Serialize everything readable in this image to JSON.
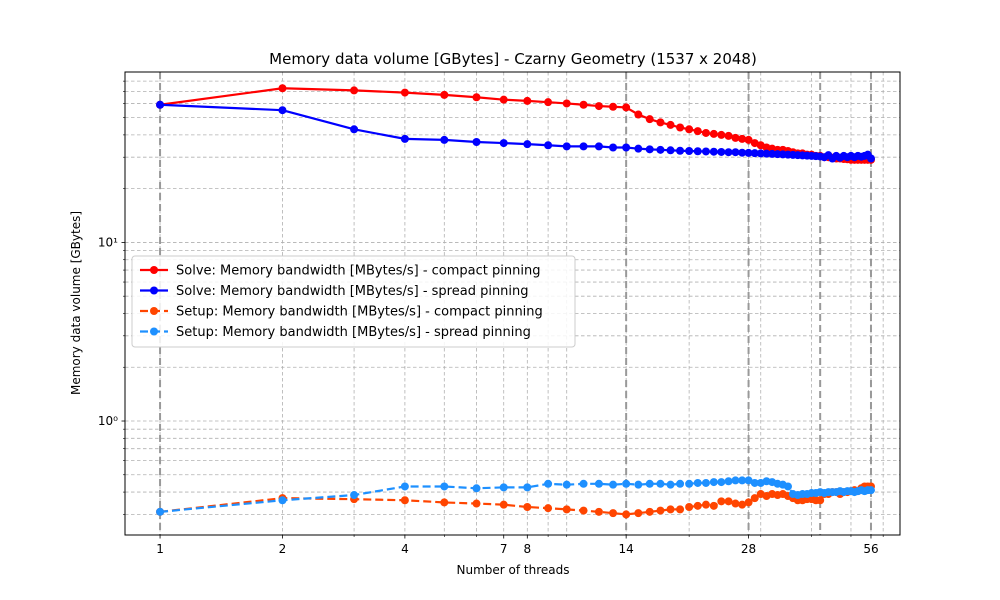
{
  "chart_data": {
    "type": "line",
    "title": "Memory data volume [GBytes] - Czarny Geometry (1537 x 2048)",
    "xlabel": "Number of threads",
    "ylabel": "Memory data volume [GBytes]",
    "xscale": "log",
    "yscale": "log",
    "xlim": [
      0.82,
      66
    ],
    "ylim": [
      0.23,
      90
    ],
    "x_ticks": [
      1,
      2,
      4,
      7,
      8,
      14,
      28,
      56
    ],
    "y_ticks": [
      {
        "value": 1,
        "label": "10⁰"
      },
      {
        "value": 10,
        "label": "10¹"
      }
    ],
    "x_highlight_lines": [
      1,
      14,
      28,
      42,
      56
    ],
    "grid": true,
    "legend_position": "center-left",
    "series": [
      {
        "name": "Solve: Memory bandwidth [MBytes/s] - compact pinning",
        "color": "#ff0000",
        "linestyle": "solid",
        "points": [
          [
            1,
            59
          ],
          [
            2,
            73
          ],
          [
            3,
            71
          ],
          [
            4,
            69
          ],
          [
            5,
            67
          ],
          [
            6,
            65
          ],
          [
            7,
            63
          ],
          [
            8,
            62
          ],
          [
            9,
            61
          ],
          [
            10,
            60
          ],
          [
            11,
            59
          ],
          [
            12,
            58
          ],
          [
            13,
            57.5
          ],
          [
            14,
            57
          ],
          [
            15,
            52
          ],
          [
            16,
            49
          ],
          [
            17,
            47
          ],
          [
            18,
            45.5
          ],
          [
            19,
            44
          ],
          [
            20,
            43
          ],
          [
            21,
            42
          ],
          [
            22,
            41
          ],
          [
            23,
            40.5
          ],
          [
            24,
            40
          ],
          [
            25,
            39.5
          ],
          [
            26,
            38.5
          ],
          [
            27,
            38
          ],
          [
            28,
            37.5
          ],
          [
            29,
            36
          ],
          [
            30,
            35
          ],
          [
            31,
            34
          ],
          [
            32,
            33.5
          ],
          [
            33,
            33
          ],
          [
            34,
            33
          ],
          [
            35,
            32.5
          ],
          [
            36,
            32
          ],
          [
            37,
            31.5
          ],
          [
            38,
            31.5
          ],
          [
            39,
            31
          ],
          [
            40,
            31
          ],
          [
            41,
            30.5
          ],
          [
            42,
            30.5
          ],
          [
            43,
            30
          ],
          [
            44,
            30
          ],
          [
            45,
            29.8
          ],
          [
            46,
            29.5
          ],
          [
            47,
            29.5
          ],
          [
            48,
            29.3
          ],
          [
            49,
            29.2
          ],
          [
            50,
            29
          ],
          [
            51,
            29
          ],
          [
            52,
            29
          ],
          [
            53,
            29
          ],
          [
            54,
            29
          ],
          [
            55,
            29
          ],
          [
            56,
            29
          ]
        ]
      },
      {
        "name": "Solve: Memory bandwidth [MBytes/s] - spread pinning",
        "color": "#0000ff",
        "linestyle": "solid",
        "points": [
          [
            1,
            59
          ],
          [
            2,
            55
          ],
          [
            3,
            43
          ],
          [
            4,
            38
          ],
          [
            5,
            37.5
          ],
          [
            6,
            36.5
          ],
          [
            7,
            36
          ],
          [
            8,
            35.5
          ],
          [
            9,
            35
          ],
          [
            10,
            34.5
          ],
          [
            11,
            34.5
          ],
          [
            12,
            34.5
          ],
          [
            13,
            34
          ],
          [
            14,
            34
          ],
          [
            15,
            33.5
          ],
          [
            16,
            33.2
          ],
          [
            17,
            33
          ],
          [
            18,
            32.8
          ],
          [
            19,
            32.6
          ],
          [
            20,
            32.5
          ],
          [
            21,
            32.4
          ],
          [
            22,
            32.3
          ],
          [
            23,
            32.2
          ],
          [
            24,
            32.1
          ],
          [
            25,
            32
          ],
          [
            26,
            32
          ],
          [
            27,
            31.8
          ],
          [
            28,
            31.7
          ],
          [
            29,
            31.6
          ],
          [
            30,
            31.5
          ],
          [
            31,
            31.4
          ],
          [
            32,
            31.3
          ],
          [
            33,
            31.2
          ],
          [
            34,
            31.1
          ],
          [
            35,
            31
          ],
          [
            36,
            30.9
          ],
          [
            37,
            30.8
          ],
          [
            38,
            30.7
          ],
          [
            39,
            30.6
          ],
          [
            40,
            30.5
          ],
          [
            41,
            30.4
          ],
          [
            42,
            30.3
          ],
          [
            43,
            30
          ],
          [
            44,
            30.8
          ],
          [
            45,
            29.5
          ],
          [
            46,
            30.5
          ],
          [
            47,
            29.8
          ],
          [
            48,
            30.5
          ],
          [
            49,
            30
          ],
          [
            50,
            30.5
          ],
          [
            51,
            30
          ],
          [
            52,
            30.5
          ],
          [
            53,
            30.2
          ],
          [
            54,
            30.5
          ],
          [
            55,
            31
          ],
          [
            56,
            29.5
          ]
        ]
      },
      {
        "name": "Setup: Memory bandwidth [MBytes/s] - compact pinning",
        "color": "#ff4500",
        "linestyle": "dashed",
        "points": [
          [
            1,
            0.31
          ],
          [
            2,
            0.37
          ],
          [
            3,
            0.365
          ],
          [
            4,
            0.36
          ],
          [
            5,
            0.35
          ],
          [
            6,
            0.345
          ],
          [
            7,
            0.34
          ],
          [
            8,
            0.33
          ],
          [
            9,
            0.325
          ],
          [
            10,
            0.32
          ],
          [
            11,
            0.315
          ],
          [
            12,
            0.31
          ],
          [
            13,
            0.305
          ],
          [
            14,
            0.3
          ],
          [
            15,
            0.305
          ],
          [
            16,
            0.31
          ],
          [
            17,
            0.315
          ],
          [
            18,
            0.32
          ],
          [
            19,
            0.32
          ],
          [
            20,
            0.33
          ],
          [
            21,
            0.335
          ],
          [
            22,
            0.34
          ],
          [
            23,
            0.335
          ],
          [
            24,
            0.355
          ],
          [
            25,
            0.355
          ],
          [
            26,
            0.345
          ],
          [
            27,
            0.34
          ],
          [
            28,
            0.35
          ],
          [
            29,
            0.37
          ],
          [
            30,
            0.39
          ],
          [
            31,
            0.38
          ],
          [
            32,
            0.39
          ],
          [
            33,
            0.385
          ],
          [
            34,
            0.39
          ],
          [
            35,
            0.38
          ],
          [
            36,
            0.37
          ],
          [
            37,
            0.36
          ],
          [
            38,
            0.36
          ],
          [
            39,
            0.365
          ],
          [
            40,
            0.365
          ],
          [
            41,
            0.36
          ],
          [
            42,
            0.36
          ],
          [
            43,
            0.39
          ],
          [
            44,
            0.39
          ],
          [
            45,
            0.4
          ],
          [
            46,
            0.4
          ],
          [
            47,
            0.39
          ],
          [
            48,
            0.4
          ],
          [
            49,
            0.4
          ],
          [
            50,
            0.405
          ],
          [
            51,
            0.41
          ],
          [
            52,
            0.405
          ],
          [
            53,
            0.42
          ],
          [
            54,
            0.43
          ],
          [
            55,
            0.43
          ],
          [
            56,
            0.43
          ]
        ]
      },
      {
        "name": "Setup: Memory bandwidth [MBytes/s] - spread pinning",
        "color": "#1e90ff",
        "linestyle": "dashed",
        "points": [
          [
            1,
            0.31
          ],
          [
            2,
            0.36
          ],
          [
            3,
            0.385
          ],
          [
            4,
            0.43
          ],
          [
            5,
            0.43
          ],
          [
            6,
            0.42
          ],
          [
            7,
            0.425
          ],
          [
            8,
            0.425
          ],
          [
            9,
            0.445
          ],
          [
            10,
            0.44
          ],
          [
            11,
            0.445
          ],
          [
            12,
            0.445
          ],
          [
            13,
            0.44
          ],
          [
            14,
            0.445
          ],
          [
            15,
            0.44
          ],
          [
            16,
            0.445
          ],
          [
            17,
            0.445
          ],
          [
            18,
            0.44
          ],
          [
            19,
            0.445
          ],
          [
            20,
            0.445
          ],
          [
            21,
            0.45
          ],
          [
            22,
            0.45
          ],
          [
            23,
            0.455
          ],
          [
            24,
            0.455
          ],
          [
            25,
            0.46
          ],
          [
            26,
            0.465
          ],
          [
            27,
            0.465
          ],
          [
            28,
            0.465
          ],
          [
            29,
            0.45
          ],
          [
            30,
            0.45
          ],
          [
            31,
            0.46
          ],
          [
            32,
            0.455
          ],
          [
            33,
            0.445
          ],
          [
            34,
            0.44
          ],
          [
            35,
            0.43
          ],
          [
            36,
            0.39
          ],
          [
            37,
            0.385
          ],
          [
            38,
            0.39
          ],
          [
            39,
            0.39
          ],
          [
            40,
            0.395
          ],
          [
            41,
            0.395
          ],
          [
            42,
            0.4
          ],
          [
            43,
            0.395
          ],
          [
            44,
            0.4
          ],
          [
            45,
            0.4
          ],
          [
            46,
            0.4
          ],
          [
            47,
            0.405
          ],
          [
            48,
            0.4
          ],
          [
            49,
            0.405
          ],
          [
            50,
            0.405
          ],
          [
            51,
            0.4
          ],
          [
            52,
            0.405
          ],
          [
            53,
            0.41
          ],
          [
            54,
            0.405
          ],
          [
            55,
            0.41
          ],
          [
            56,
            0.41
          ]
        ]
      }
    ]
  }
}
